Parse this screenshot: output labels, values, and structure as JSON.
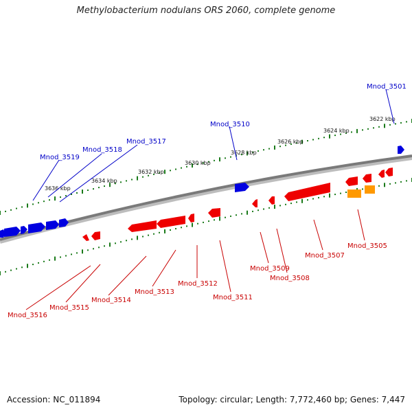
{
  "title": "Methylobacterium nodulans ORS 2060, complete genome",
  "footer": {
    "accession": "Accession: NC_011894",
    "summary": "Topology: circular; Length: 7,772,460 bp; Genes: 7,447"
  },
  "colors": {
    "backbone": "#7a7a7a",
    "tick": "#1a7a1a",
    "forward_gene": "#0000e0",
    "reverse_gene": "#ee0000",
    "rna_gene": "#ff9900",
    "forward_label": "#0000c8",
    "reverse_label": "#c80000"
  },
  "scale_labels": [
    "3622 kbp",
    "3624 kbp",
    "3626 kbp",
    "3628 kbp",
    "3630 kbp",
    "3632 kbp",
    "3634 kbp",
    "3636 kbp"
  ],
  "forward_genes": [
    "Mnod_3501",
    "Mnod_3510",
    "Mnod_3517",
    "Mnod_3518",
    "Mnod_3519"
  ],
  "reverse_genes": [
    "Mnod_3505",
    "Mnod_3507",
    "Mnod_3508",
    "Mnod_3509",
    "Mnod_3511",
    "Mnod_3512",
    "Mnod_3513",
    "Mnod_3514",
    "Mnod_3515",
    "Mnod_3516"
  ]
}
